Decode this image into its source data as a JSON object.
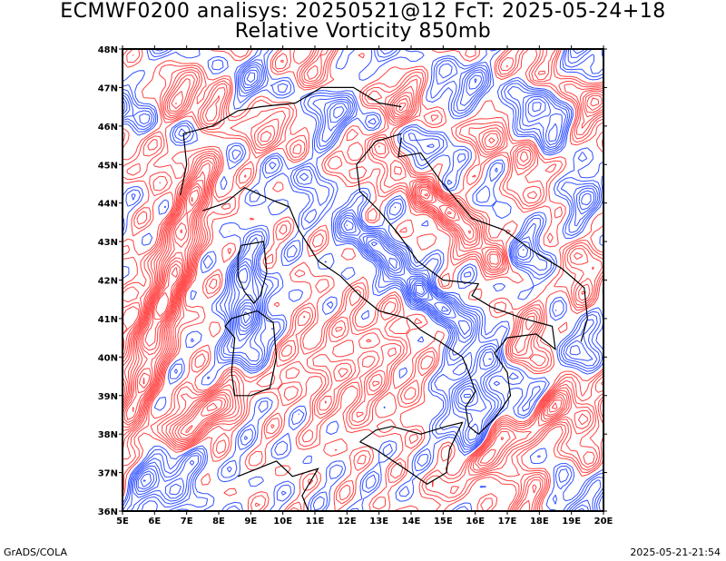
{
  "title_line1": "ECMWF0200 analisys: 20250521@12 FcT: 2025-05-24+18",
  "title_line2": "Relative Vorticity 850mb",
  "footer_left": "GrADS/COLA",
  "footer_right": "2025-05-21-21:54",
  "map": {
    "lon_range": [
      5,
      20
    ],
    "lat_range": [
      36,
      48
    ],
    "x_ticks": [
      "5E",
      "6E",
      "7E",
      "8E",
      "9E",
      "10E",
      "11E",
      "12E",
      "13E",
      "14E",
      "15E",
      "16E",
      "17E",
      "18E",
      "19E",
      "20E"
    ],
    "y_ticks": [
      "36N",
      "37N",
      "38N",
      "39N",
      "40N",
      "41N",
      "42N",
      "43N",
      "44N",
      "45N",
      "46N",
      "47N",
      "48N"
    ],
    "colors": {
      "positive_contour": "#ff4040",
      "negative_contour": "#3050ff",
      "coastline": "#000000",
      "frame": "#000000"
    }
  }
}
